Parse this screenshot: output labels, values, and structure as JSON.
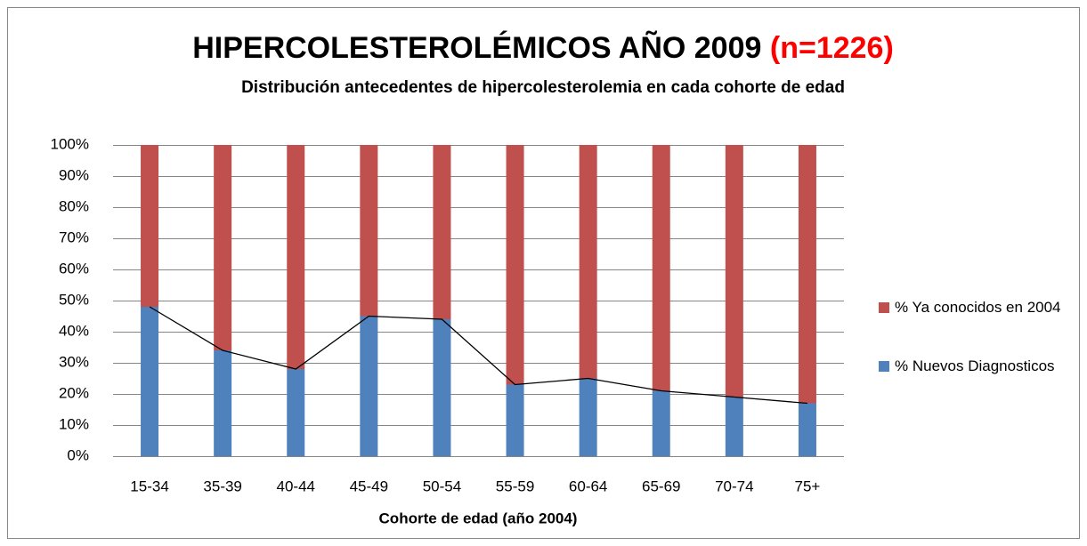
{
  "chart_data": {
    "type": "stacked_bar",
    "title": "HIPERCOLESTEROLÉMICOS AÑO 2009",
    "title_note": "(n=1226)",
    "subtitle": "Distribución  antecedentes de hipercolesterolemia en cada cohorte de edad",
    "x_label": "Cohorte de edad (año 2004)",
    "categories": [
      "15-34",
      "35-39",
      "40-44",
      "45-49",
      "50-54",
      "55-59",
      "60-64",
      "65-69",
      "70-74",
      "75+"
    ],
    "series": [
      {
        "name": "% Nuevos Diagnosticos",
        "color": "#4f81bd",
        "values": [
          48,
          34,
          28,
          45,
          44,
          23,
          25,
          21,
          19,
          17
        ]
      },
      {
        "name": "% Ya conocidos en 2004",
        "color": "#c0504d",
        "values": [
          52,
          66,
          72,
          55,
          56,
          77,
          75,
          79,
          81,
          83
        ]
      }
    ],
    "ylim": [
      0,
      100
    ],
    "yticks": [
      {
        "value": 0,
        "label": "0%"
      },
      {
        "value": 10,
        "label": "10%"
      },
      {
        "value": 20,
        "label": "20%"
      },
      {
        "value": 30,
        "label": "30%"
      },
      {
        "value": 40,
        "label": "40%"
      },
      {
        "value": 50,
        "label": "50%"
      },
      {
        "value": 60,
        "label": "60%"
      },
      {
        "value": 70,
        "label": "70%"
      },
      {
        "value": 80,
        "label": "80%"
      },
      {
        "value": 90,
        "label": "90%"
      },
      {
        "value": 100,
        "label": "100%"
      }
    ],
    "grid": true,
    "legend": "right"
  }
}
